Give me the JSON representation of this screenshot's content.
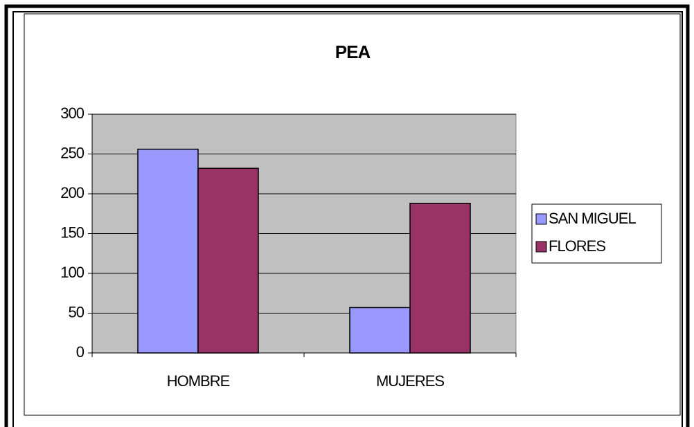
{
  "chart_data": {
    "type": "bar",
    "title": "PEA",
    "categories": [
      "HOMBRE",
      "MUJERES"
    ],
    "series": [
      {
        "name": "SAN MIGUEL",
        "color": "#9999ff",
        "values": [
          256,
          57
        ]
      },
      {
        "name": "FLORES",
        "color": "#993366",
        "values": [
          232,
          188
        ]
      }
    ],
    "ylim": [
      0,
      300
    ],
    "yticks": [
      0,
      50,
      100,
      150,
      200,
      250,
      300
    ],
    "grid": true,
    "legend": "right"
  }
}
